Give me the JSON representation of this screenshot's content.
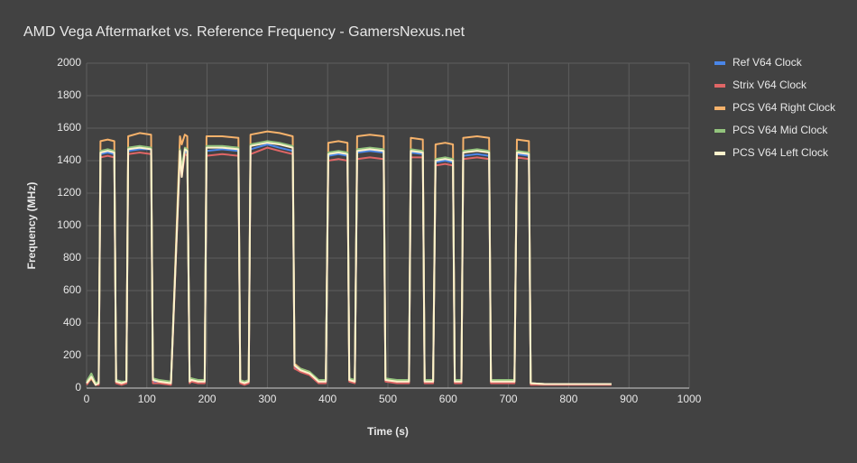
{
  "chart_data": {
    "type": "line",
    "title": "AMD Vega Aftermarket vs. Reference Frequency - GamersNexus.net",
    "x_label": "Time (s)",
    "y_label": "Frequency (MHz)",
    "x": [
      0,
      8,
      15,
      20,
      23,
      35,
      46,
      49,
      58,
      66,
      69,
      88,
      107,
      110,
      120,
      140,
      155,
      158,
      163,
      167,
      171,
      174,
      185,
      196,
      199,
      225,
      252,
      255,
      262,
      269,
      272,
      300,
      320,
      342,
      345,
      355,
      370,
      385,
      397,
      401,
      418,
      433,
      436,
      445,
      449,
      470,
      493,
      496,
      515,
      535,
      538,
      558,
      561,
      575,
      579,
      595,
      608,
      611,
      622,
      625,
      648,
      668,
      671,
      690,
      710,
      714,
      734,
      737,
      760,
      800,
      871
    ],
    "series": [
      {
        "name": "Ref V64 Clock",
        "color": "#4a86e8",
        "values": [
          30,
          80,
          20,
          30,
          1440,
          1450,
          1440,
          40,
          30,
          30,
          1460,
          1470,
          1470,
          40,
          40,
          30,
          1460,
          1320,
          1450,
          1460,
          40,
          50,
          40,
          40,
          1460,
          1470,
          1460,
          40,
          30,
          40,
          1470,
          1500,
          1480,
          1460,
          130,
          110,
          90,
          40,
          40,
          1430,
          1440,
          1430,
          50,
          40,
          1450,
          1460,
          1450,
          50,
          40,
          40,
          1450,
          1440,
          40,
          40,
          1390,
          1400,
          1390,
          40,
          40,
          1430,
          1440,
          1430,
          40,
          40,
          40,
          1440,
          1430,
          30,
          25,
          25,
          25
        ]
      },
      {
        "name": "Strix V64 Clock",
        "color": "#e06666",
        "values": [
          20,
          60,
          20,
          20,
          1420,
          1430,
          1420,
          30,
          20,
          30,
          1440,
          1450,
          1440,
          30,
          30,
          20,
          1430,
          1300,
          1440,
          1430,
          30,
          40,
          30,
          30,
          1430,
          1440,
          1430,
          30,
          20,
          30,
          1440,
          1480,
          1460,
          1440,
          120,
          100,
          80,
          30,
          30,
          1400,
          1410,
          1400,
          40,
          30,
          1410,
          1420,
          1410,
          40,
          30,
          30,
          1420,
          1420,
          30,
          30,
          1370,
          1380,
          1370,
          30,
          30,
          1410,
          1420,
          1410,
          30,
          30,
          30,
          1420,
          1410,
          20,
          20,
          20,
          20
        ]
      },
      {
        "name": "PCS V64 Right Clock",
        "color": "#f6b26b",
        "values": [
          30,
          60,
          20,
          40,
          1520,
          1530,
          1520,
          40,
          30,
          40,
          1550,
          1570,
          1560,
          50,
          40,
          30,
          1550,
          1500,
          1560,
          1550,
          40,
          60,
          40,
          50,
          1550,
          1550,
          1540,
          40,
          30,
          50,
          1560,
          1580,
          1570,
          1550,
          150,
          120,
          100,
          40,
          50,
          1510,
          1520,
          1510,
          50,
          40,
          1550,
          1560,
          1550,
          60,
          40,
          50,
          1540,
          1530,
          50,
          40,
          1500,
          1510,
          1500,
          50,
          40,
          1540,
          1550,
          1540,
          50,
          50,
          40,
          1530,
          1520,
          30,
          25,
          25,
          25
        ]
      },
      {
        "name": "PCS V64 Mid Clock",
        "color": "#93c47d",
        "values": [
          40,
          90,
          30,
          40,
          1460,
          1470,
          1460,
          50,
          40,
          40,
          1480,
          1490,
          1480,
          60,
          50,
          40,
          1470,
          1350,
          1480,
          1470,
          50,
          60,
          50,
          50,
          1490,
          1490,
          1480,
          50,
          40,
          50,
          1500,
          1520,
          1510,
          1490,
          140,
          120,
          100,
          50,
          50,
          1450,
          1460,
          1450,
          60,
          50,
          1470,
          1480,
          1470,
          60,
          50,
          50,
          1470,
          1460,
          50,
          50,
          1410,
          1420,
          1410,
          50,
          50,
          1460,
          1470,
          1460,
          50,
          50,
          50,
          1460,
          1450,
          30,
          25,
          25,
          25
        ]
      },
      {
        "name": "PCS V64 Left Clock",
        "color": "#fff2cc",
        "values": [
          30,
          70,
          20,
          30,
          1450,
          1460,
          1450,
          40,
          30,
          40,
          1470,
          1480,
          1470,
          50,
          40,
          30,
          1460,
          1300,
          1470,
          1460,
          40,
          50,
          40,
          40,
          1480,
          1480,
          1470,
          40,
          30,
          40,
          1490,
          1510,
          1500,
          1480,
          140,
          110,
          90,
          40,
          40,
          1440,
          1450,
          1440,
          50,
          40,
          1460,
          1470,
          1460,
          50,
          40,
          40,
          1460,
          1450,
          40,
          40,
          1400,
          1410,
          1400,
          40,
          40,
          1450,
          1460,
          1450,
          40,
          40,
          40,
          1450,
          1440,
          30,
          25,
          25,
          25
        ]
      }
    ],
    "xlim": [
      0,
      1000
    ],
    "xticks": [
      0,
      100,
      200,
      300,
      400,
      500,
      600,
      700,
      800,
      900,
      1000
    ],
    "ylim": [
      0,
      2000
    ],
    "yticks": [
      0,
      200,
      400,
      600,
      800,
      1000,
      1200,
      1400,
      1600,
      1800,
      2000
    ],
    "grid": true,
    "legend": "right"
  }
}
